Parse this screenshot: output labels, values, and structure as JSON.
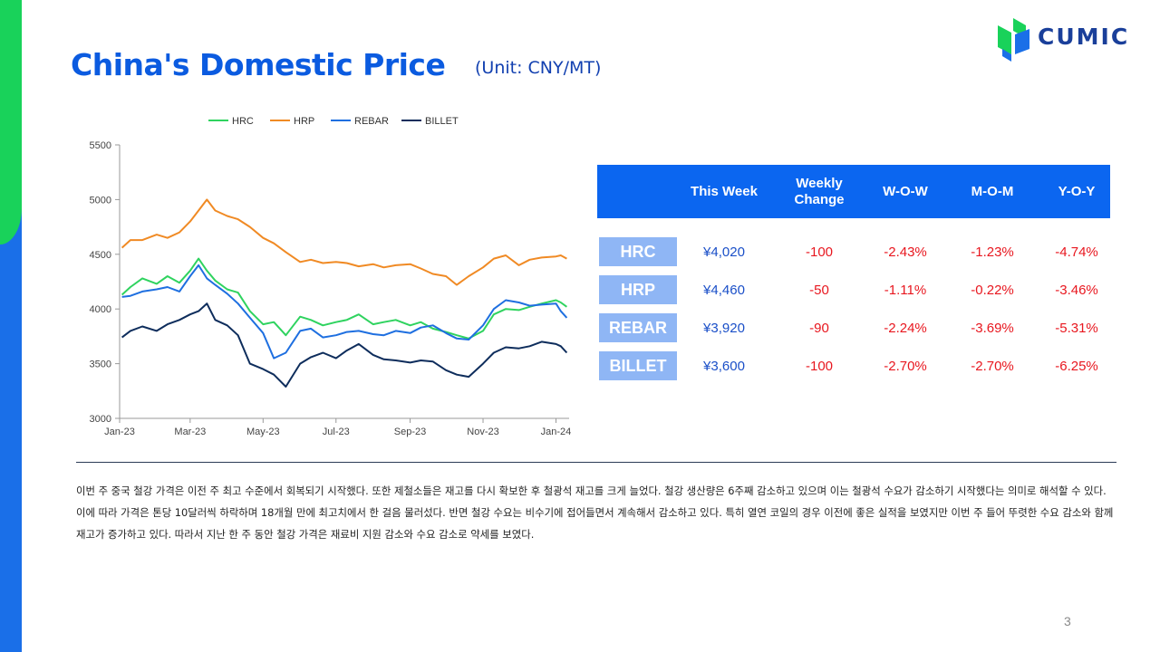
{
  "title": "China's Domestic Price",
  "unit": "(Unit: CNY/MT)",
  "logo": {
    "text": "CUMIC",
    "icon": "cumic-leaf-logo-icon",
    "colors": {
      "green": "#19d25a",
      "blue": "#1a6fe8",
      "text": "#1a3f9a"
    }
  },
  "chart_data": {
    "type": "line",
    "title": "",
    "xlabel": "",
    "ylabel": "",
    "ylim": [
      3000,
      5500
    ],
    "yticks": [
      "3000",
      "3500",
      "4000",
      "4500",
      "5000",
      "5500"
    ],
    "x": [
      "2023-01-03",
      "2023-01-10",
      "2023-01-20",
      "2023-02-01",
      "2023-02-10",
      "2023-02-20",
      "2023-03-01",
      "2023-03-08",
      "2023-03-15",
      "2023-03-22",
      "2023-04-01",
      "2023-04-10",
      "2023-04-20",
      "2023-05-01",
      "2023-05-10",
      "2023-05-20",
      "2023-06-01",
      "2023-06-10",
      "2023-06-20",
      "2023-07-01",
      "2023-07-10",
      "2023-07-20",
      "2023-08-01",
      "2023-08-10",
      "2023-08-20",
      "2023-09-01",
      "2023-09-10",
      "2023-09-20",
      "2023-10-01",
      "2023-10-10",
      "2023-10-20",
      "2023-11-01",
      "2023-11-10",
      "2023-11-20",
      "2023-12-01",
      "2023-12-10",
      "2023-12-20",
      "2024-01-01",
      "2024-01-05",
      "2024-01-10"
    ],
    "xticks": [
      {
        "label": "Jan-23",
        "date": "2023-01-01"
      },
      {
        "label": "Mar-23",
        "date": "2023-03-01"
      },
      {
        "label": "May-23",
        "date": "2023-05-01"
      },
      {
        "label": "Jul-23",
        "date": "2023-07-01"
      },
      {
        "label": "Sep-23",
        "date": "2023-09-01"
      },
      {
        "label": "Nov-23",
        "date": "2023-11-01"
      },
      {
        "label": "Jan-24",
        "date": "2024-01-01"
      }
    ],
    "x_range": [
      "2023-01-01",
      "2024-01-12"
    ],
    "legend_position": "top",
    "grid": false,
    "series": [
      {
        "name": "HRC",
        "color": "#2fd35f",
        "values": [
          4130,
          4200,
          4280,
          4230,
          4300,
          4240,
          4350,
          4460,
          4350,
          4260,
          4180,
          4150,
          3980,
          3860,
          3880,
          3760,
          3930,
          3900,
          3850,
          3880,
          3900,
          3950,
          3860,
          3880,
          3900,
          3850,
          3880,
          3820,
          3790,
          3760,
          3730,
          3800,
          3950,
          4000,
          3990,
          4020,
          4050,
          4080,
          4060,
          4020
        ]
      },
      {
        "name": "HRP",
        "color": "#f08a24",
        "values": [
          4560,
          4630,
          4630,
          4680,
          4650,
          4700,
          4800,
          4900,
          5000,
          4900,
          4850,
          4820,
          4750,
          4650,
          4600,
          4520,
          4430,
          4450,
          4420,
          4430,
          4420,
          4390,
          4410,
          4380,
          4400,
          4410,
          4370,
          4320,
          4300,
          4220,
          4300,
          4380,
          4460,
          4490,
          4400,
          4450,
          4470,
          4480,
          4490,
          4460
        ]
      },
      {
        "name": "REBAR",
        "color": "#1e6fe0",
        "values": [
          4110,
          4120,
          4160,
          4180,
          4200,
          4160,
          4300,
          4400,
          4280,
          4220,
          4140,
          4050,
          3920,
          3780,
          3550,
          3600,
          3800,
          3820,
          3740,
          3760,
          3790,
          3800,
          3770,
          3760,
          3800,
          3780,
          3830,
          3850,
          3780,
          3730,
          3720,
          3850,
          4000,
          4080,
          4060,
          4030,
          4040,
          4050,
          3980,
          3920
        ]
      },
      {
        "name": "BILLET",
        "color": "#0e2d5c",
        "values": [
          3740,
          3800,
          3840,
          3800,
          3860,
          3900,
          3950,
          3980,
          4050,
          3900,
          3850,
          3760,
          3500,
          3450,
          3400,
          3290,
          3500,
          3560,
          3600,
          3550,
          3620,
          3680,
          3580,
          3540,
          3530,
          3510,
          3530,
          3520,
          3440,
          3400,
          3380,
          3500,
          3600,
          3650,
          3640,
          3660,
          3700,
          3680,
          3660,
          3600
        ]
      }
    ]
  },
  "table": {
    "headers": [
      "",
      "This Week",
      "Weekly Change",
      "W-O-W",
      "M-O-M",
      "Y-O-Y"
    ],
    "rows": [
      {
        "product": "HRC",
        "this_week": "¥4,020",
        "weekly_change": "-100",
        "wow": "-2.43%",
        "mom": "-1.23%",
        "yoy": "-4.74%"
      },
      {
        "product": "HRP",
        "this_week": "¥4,460",
        "weekly_change": "-50",
        "wow": "-1.11%",
        "mom": "-0.22%",
        "yoy": "-3.46%"
      },
      {
        "product": "REBAR",
        "this_week": "¥3,920",
        "weekly_change": "-90",
        "wow": "-2.24%",
        "mom": "-3.69%",
        "yoy": "-5.31%"
      },
      {
        "product": "BILLET",
        "this_week": "¥3,600",
        "weekly_change": "-100",
        "wow": "-2.70%",
        "mom": "-2.70%",
        "yoy": "-6.25%"
      }
    ]
  },
  "body_text": "이번 주 중국 철강 가격은 이전 주 최고 수준에서 회복되기 시작했다. 또한 제철소들은 재고를 다시 확보한 후 철광석 재고를 크게 늘었다. 철강 생산량은 6주째 감소하고 있으며 이는 철광석 수요가 감소하기 시작했다는 의미로 해석할 수 있다. 이에 따라 가격은 톤당 10달러씩 하락하며 18개월 만에 최고치에서 한 걸음 물러섰다. 반면 철강 수요는 비수기에 접어들면서 계속해서 감소하고 있다. 특히 열연 코일의 경우 이전에 좋은 실적을 보였지만 이번 주 들어 뚜렷한 수요 감소와 함께 재고가 증가하고 있다. 따라서 지난 한 주 동안 철강 가격은 재료비 지원 감소와 수요 감소로 약세를 보였다.",
  "page_number": "3",
  "theme": {
    "accent": "#0b66f0",
    "title_blue": "#0b5be0",
    "negative": "#e8171f",
    "product_label_bg": "#8fb6f5"
  }
}
